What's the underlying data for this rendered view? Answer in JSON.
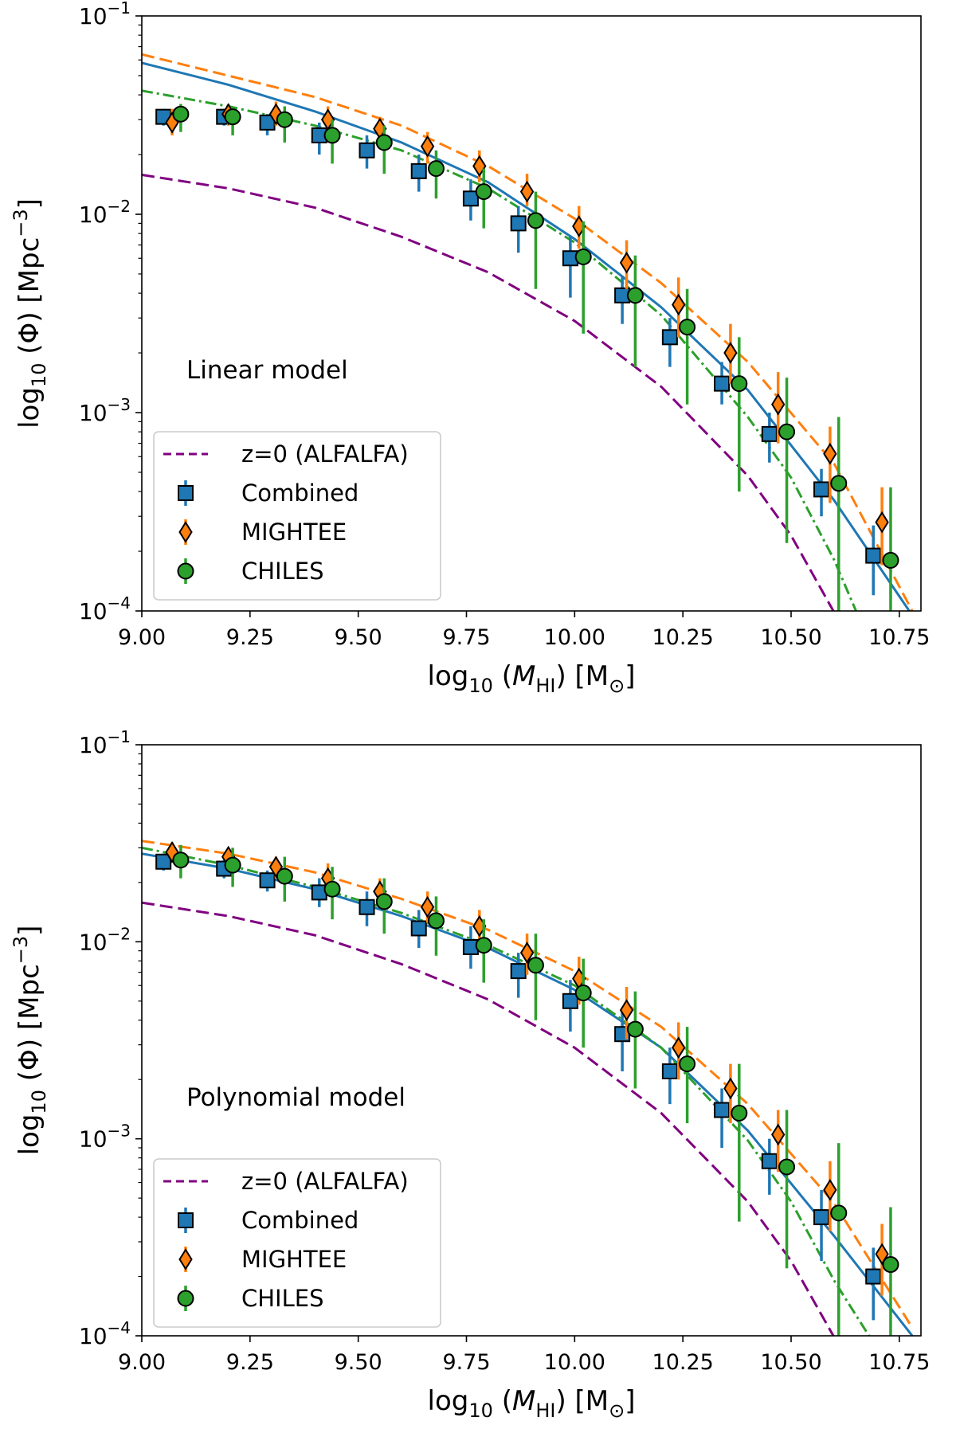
{
  "chart_data": [
    {
      "type": "scatter",
      "panel": "top",
      "annotation": "Linear model",
      "xlabel": {
        "main": "log",
        "sub": "10",
        "open": " (",
        "var": "M",
        "varsub": "HI",
        "close": ") [M",
        "sun": "⊙",
        "end": "]"
      },
      "ylabel": {
        "main": "log",
        "sub": "10",
        "rest": " (Φ) [Mpc",
        "sup": "−3",
        "end": "]"
      },
      "xlim": [
        9.0,
        10.8
      ],
      "ylim_log10": [
        -4,
        -1
      ],
      "xticks": [
        9.0,
        9.25,
        9.5,
        9.75,
        10.0,
        10.25,
        10.5,
        10.75
      ],
      "xtick_labels": [
        "9.00",
        "9.25",
        "9.50",
        "9.75",
        "10.00",
        "10.25",
        "10.50",
        "10.75"
      ],
      "yticks": [
        {
          "base": "10",
          "exp": "−4",
          "value": -4
        },
        {
          "base": "10",
          "exp": "−3",
          "value": -3
        },
        {
          "base": "10",
          "exp": "−2",
          "value": -2
        },
        {
          "base": "10",
          "exp": "−1",
          "value": -1
        }
      ],
      "legend": {
        "position": "lower-left",
        "entries": [
          "z=0 (ALFALFA)",
          "Combined",
          "MIGHTEE",
          "CHILES"
        ]
      },
      "lines": [
        {
          "name": "Combined fit",
          "color": "#1f77b4",
          "style": "solid",
          "x": [
            9.0,
            9.2,
            9.4,
            9.6,
            9.8,
            10.0,
            10.2,
            10.4,
            10.6,
            10.78
          ],
          "y": [
            0.058,
            0.045,
            0.033,
            0.023,
            0.0145,
            0.0075,
            0.0034,
            0.0013,
            0.00036,
            9.5e-05
          ]
        },
        {
          "name": "MIGHTEE fit",
          "color": "#ff7f0e",
          "style": "dashed",
          "x": [
            9.0,
            9.2,
            9.4,
            9.6,
            9.8,
            10.0,
            10.2,
            10.4,
            10.6,
            10.78
          ],
          "y": [
            0.064,
            0.05,
            0.039,
            0.028,
            0.0175,
            0.0095,
            0.0045,
            0.0018,
            0.00055,
            0.0001
          ]
        },
        {
          "name": "CHILES fit",
          "color": "#2ca02c",
          "style": "dashdot",
          "x": [
            9.0,
            9.2,
            9.4,
            9.6,
            9.8,
            10.0,
            10.2,
            10.4,
            10.5,
            10.6,
            10.65
          ],
          "y": [
            0.042,
            0.035,
            0.028,
            0.021,
            0.0135,
            0.0072,
            0.0031,
            0.00095,
            0.00047,
            0.00018,
            0.0001
          ]
        },
        {
          "name": "z=0 (ALFALFA)",
          "color": "#800080",
          "style": "dashed",
          "x": [
            9.0,
            9.2,
            9.4,
            9.6,
            9.8,
            10.0,
            10.2,
            10.4,
            10.5,
            10.6
          ],
          "y": [
            0.0158,
            0.0135,
            0.0108,
            0.0077,
            0.0051,
            0.0029,
            0.00135,
            0.00048,
            0.00024,
            9.8e-05
          ]
        }
      ],
      "series": [
        {
          "name": "Combined",
          "color": "#1f77b4",
          "marker": "square",
          "x": [
            9.05,
            9.19,
            9.29,
            9.41,
            9.52,
            9.64,
            9.76,
            9.87,
            9.99,
            10.11,
            10.22,
            10.34,
            10.45,
            10.57,
            10.69
          ],
          "y": [
            0.031,
            0.031,
            0.029,
            0.025,
            0.021,
            0.0165,
            0.012,
            0.009,
            0.006,
            0.0039,
            0.0024,
            0.0014,
            0.00078,
            0.00041,
            0.00019
          ],
          "err_low": [
            0.028,
            0.028,
            0.025,
            0.02,
            0.017,
            0.013,
            0.0093,
            0.0064,
            0.0038,
            0.0028,
            0.0017,
            0.0011,
            0.00056,
            0.0003,
            0.00012
          ],
          "err_high": [
            0.034,
            0.034,
            0.032,
            0.029,
            0.025,
            0.02,
            0.015,
            0.011,
            0.0077,
            0.0049,
            0.003,
            0.0018,
            0.001,
            0.00052,
            0.00027
          ]
        },
        {
          "name": "MIGHTEE",
          "color": "#ff7f0e",
          "marker": "diamond",
          "x": [
            9.07,
            9.2,
            9.31,
            9.43,
            9.55,
            9.66,
            9.78,
            9.89,
            10.01,
            10.12,
            10.24,
            10.36,
            10.47,
            10.59,
            10.71
          ],
          "y": [
            0.029,
            0.032,
            0.032,
            0.03,
            0.027,
            0.022,
            0.0175,
            0.013,
            0.0087,
            0.0057,
            0.0035,
            0.002,
            0.0011,
            0.00062,
            0.00028
          ],
          "err_low": [
            0.025,
            0.028,
            0.028,
            0.026,
            0.023,
            0.018,
            0.0145,
            0.011,
            0.0067,
            0.0042,
            0.0024,
            0.0014,
            0.0007,
            0.00035,
            0.00017
          ],
          "err_high": [
            0.034,
            0.036,
            0.037,
            0.035,
            0.031,
            0.026,
            0.021,
            0.016,
            0.011,
            0.0074,
            0.0048,
            0.0028,
            0.0016,
            0.00085,
            0.00042
          ]
        },
        {
          "name": "CHILES",
          "color": "#2ca02c",
          "marker": "circle",
          "x": [
            9.09,
            9.21,
            9.33,
            9.44,
            9.56,
            9.68,
            9.79,
            9.91,
            10.02,
            10.14,
            10.26,
            10.38,
            10.49,
            10.61,
            10.73
          ],
          "y": [
            0.032,
            0.031,
            0.03,
            0.025,
            0.023,
            0.017,
            0.013,
            0.0093,
            0.0061,
            0.0039,
            0.0027,
            0.0014,
            0.0008,
            0.00044,
            0.00018
          ],
          "err_low": [
            0.026,
            0.025,
            0.023,
            0.018,
            0.016,
            0.012,
            0.0085,
            0.0042,
            0.0025,
            0.0017,
            0.0011,
            0.0004,
            0.00022,
            0.0001,
            0.0001
          ],
          "err_high": [
            0.036,
            0.035,
            0.035,
            0.03,
            0.028,
            0.021,
            0.017,
            0.013,
            0.0092,
            0.0062,
            0.0042,
            0.0024,
            0.0015,
            0.00095,
            0.00042
          ]
        }
      ]
    },
    {
      "type": "scatter",
      "panel": "bottom",
      "annotation": "Polynomial model",
      "xlabel": {
        "main": "log",
        "sub": "10",
        "open": " (",
        "var": "M",
        "varsub": "HI",
        "close": ") [M",
        "sun": "⊙",
        "end": "]"
      },
      "ylabel": {
        "main": "log",
        "sub": "10",
        "rest": " (Φ) [Mpc",
        "sup": "−3",
        "end": "]"
      },
      "xlim": [
        9.0,
        10.8
      ],
      "ylim_log10": [
        -4,
        -1
      ],
      "xticks": [
        9.0,
        9.25,
        9.5,
        9.75,
        10.0,
        10.25,
        10.5,
        10.75
      ],
      "xtick_labels": [
        "9.00",
        "9.25",
        "9.50",
        "9.75",
        "10.00",
        "10.25",
        "10.50",
        "10.75"
      ],
      "yticks": [
        {
          "base": "10",
          "exp": "−4",
          "value": -4
        },
        {
          "base": "10",
          "exp": "−3",
          "value": -3
        },
        {
          "base": "10",
          "exp": "−2",
          "value": -2
        },
        {
          "base": "10",
          "exp": "−1",
          "value": -1
        }
      ],
      "legend": {
        "position": "lower-left",
        "entries": [
          "z=0 (ALFALFA)",
          "Combined",
          "MIGHTEE",
          "CHILES"
        ]
      },
      "lines": [
        {
          "name": "Combined fit",
          "color": "#1f77b4",
          "style": "solid",
          "x": [
            9.0,
            9.2,
            9.4,
            9.6,
            9.8,
            10.0,
            10.2,
            10.4,
            10.6,
            10.78
          ],
          "y": [
            0.028,
            0.0235,
            0.0185,
            0.0135,
            0.0093,
            0.0057,
            0.0029,
            0.0011,
            0.00032,
            0.0001
          ]
        },
        {
          "name": "MIGHTEE fit",
          "color": "#ff7f0e",
          "style": "dashed",
          "x": [
            9.0,
            9.2,
            9.4,
            9.6,
            9.8,
            10.0,
            10.2,
            10.4,
            10.6,
            10.78
          ],
          "y": [
            0.0325,
            0.028,
            0.0225,
            0.0165,
            0.0115,
            0.0071,
            0.0037,
            0.0015,
            0.00047,
            0.00011
          ]
        },
        {
          "name": "CHILES fit",
          "color": "#2ca02c",
          "style": "dashdot",
          "x": [
            9.0,
            9.2,
            9.4,
            9.6,
            9.8,
            10.0,
            10.2,
            10.4,
            10.5,
            10.6,
            10.68
          ],
          "y": [
            0.03,
            0.0245,
            0.019,
            0.014,
            0.0096,
            0.006,
            0.0029,
            0.00098,
            0.00048,
            0.00019,
            0.0001
          ]
        },
        {
          "name": "z=0 (ALFALFA)",
          "color": "#800080",
          "style": "dashed",
          "x": [
            9.0,
            9.2,
            9.4,
            9.6,
            9.8,
            10.0,
            10.2,
            10.4,
            10.5,
            10.6
          ],
          "y": [
            0.0158,
            0.0135,
            0.0108,
            0.0077,
            0.0051,
            0.0029,
            0.00135,
            0.00048,
            0.00024,
            9.8e-05
          ]
        }
      ],
      "series": [
        {
          "name": "Combined",
          "color": "#1f77b4",
          "marker": "square",
          "x": [
            9.05,
            9.19,
            9.29,
            9.41,
            9.52,
            9.64,
            9.76,
            9.87,
            9.99,
            10.11,
            10.22,
            10.34,
            10.45,
            10.57,
            10.69
          ],
          "y": [
            0.0255,
            0.0235,
            0.0205,
            0.0178,
            0.015,
            0.0117,
            0.0094,
            0.0071,
            0.005,
            0.0034,
            0.0022,
            0.0014,
            0.00077,
            0.0004,
            0.0002
          ],
          "err_low": [
            0.023,
            0.021,
            0.018,
            0.015,
            0.012,
            0.0093,
            0.0073,
            0.0052,
            0.0035,
            0.0022,
            0.0015,
            0.0009,
            0.00052,
            0.00024,
            0.00012
          ],
          "err_high": [
            0.028,
            0.026,
            0.023,
            0.021,
            0.018,
            0.0145,
            0.012,
            0.0088,
            0.0064,
            0.0045,
            0.0029,
            0.0018,
            0.001,
            0.00055,
            0.00028
          ]
        },
        {
          "name": "MIGHTEE",
          "color": "#ff7f0e",
          "marker": "diamond",
          "x": [
            9.07,
            9.2,
            9.31,
            9.43,
            9.55,
            9.66,
            9.78,
            9.89,
            10.01,
            10.12,
            10.24,
            10.36,
            10.47,
            10.59,
            10.71
          ],
          "y": [
            0.0285,
            0.027,
            0.024,
            0.021,
            0.018,
            0.015,
            0.012,
            0.0088,
            0.0065,
            0.0045,
            0.0029,
            0.0018,
            0.00105,
            0.00055,
            0.00026
          ],
          "err_low": [
            0.026,
            0.024,
            0.021,
            0.0185,
            0.015,
            0.0125,
            0.0097,
            0.0068,
            0.0048,
            0.0032,
            0.002,
            0.0012,
            0.00068,
            0.00034,
            0.00016
          ],
          "err_high": [
            0.032,
            0.03,
            0.027,
            0.025,
            0.021,
            0.018,
            0.0145,
            0.011,
            0.0084,
            0.0059,
            0.0039,
            0.0024,
            0.0014,
            0.00077,
            0.00037
          ]
        },
        {
          "name": "CHILES",
          "color": "#2ca02c",
          "marker": "circle",
          "x": [
            9.09,
            9.21,
            9.33,
            9.44,
            9.56,
            9.68,
            9.79,
            9.91,
            10.02,
            10.14,
            10.26,
            10.38,
            10.49,
            10.61,
            10.73
          ],
          "y": [
            0.026,
            0.0245,
            0.0215,
            0.0185,
            0.016,
            0.0128,
            0.0096,
            0.0076,
            0.0055,
            0.0036,
            0.0024,
            0.00135,
            0.00072,
            0.00042,
            0.00023
          ],
          "err_low": [
            0.021,
            0.019,
            0.016,
            0.013,
            0.011,
            0.0085,
            0.0062,
            0.004,
            0.0029,
            0.0018,
            0.0012,
            0.00038,
            0.00022,
            0.0001,
            0.0001
          ],
          "err_high": [
            0.031,
            0.03,
            0.027,
            0.024,
            0.021,
            0.017,
            0.013,
            0.011,
            0.0082,
            0.0056,
            0.0037,
            0.0024,
            0.0014,
            0.00095,
            0.00045
          ]
        }
      ]
    }
  ]
}
